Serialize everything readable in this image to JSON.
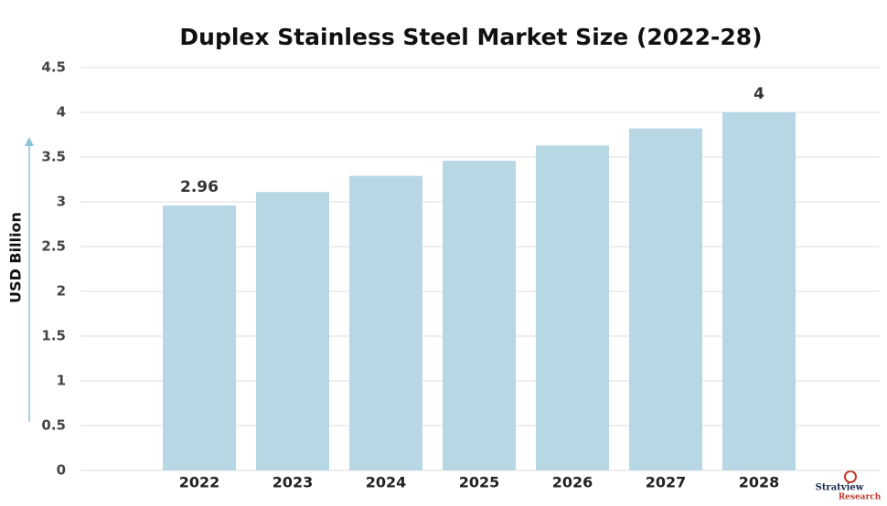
{
  "chart_data": {
    "type": "bar",
    "title": "Duplex Stainless Steel Market Size (2022-28)",
    "ylabel": "USD Billion",
    "categories": [
      "2022",
      "2023",
      "2024",
      "2025",
      "2026",
      "2027",
      "2028"
    ],
    "values": [
      2.96,
      3.11,
      3.29,
      3.46,
      3.63,
      3.82,
      4
    ],
    "value_labels": [
      "2.96",
      null,
      null,
      null,
      null,
      null,
      "4"
    ],
    "color": "#b7d7e5",
    "ylim": [
      0,
      4.5
    ],
    "yticks": [
      0,
      0.5,
      1,
      1.5,
      2,
      2.5,
      3,
      3.5,
      4,
      4.5
    ],
    "grid": true
  },
  "logo": {
    "name": "Stratview",
    "subname": "Research"
  }
}
